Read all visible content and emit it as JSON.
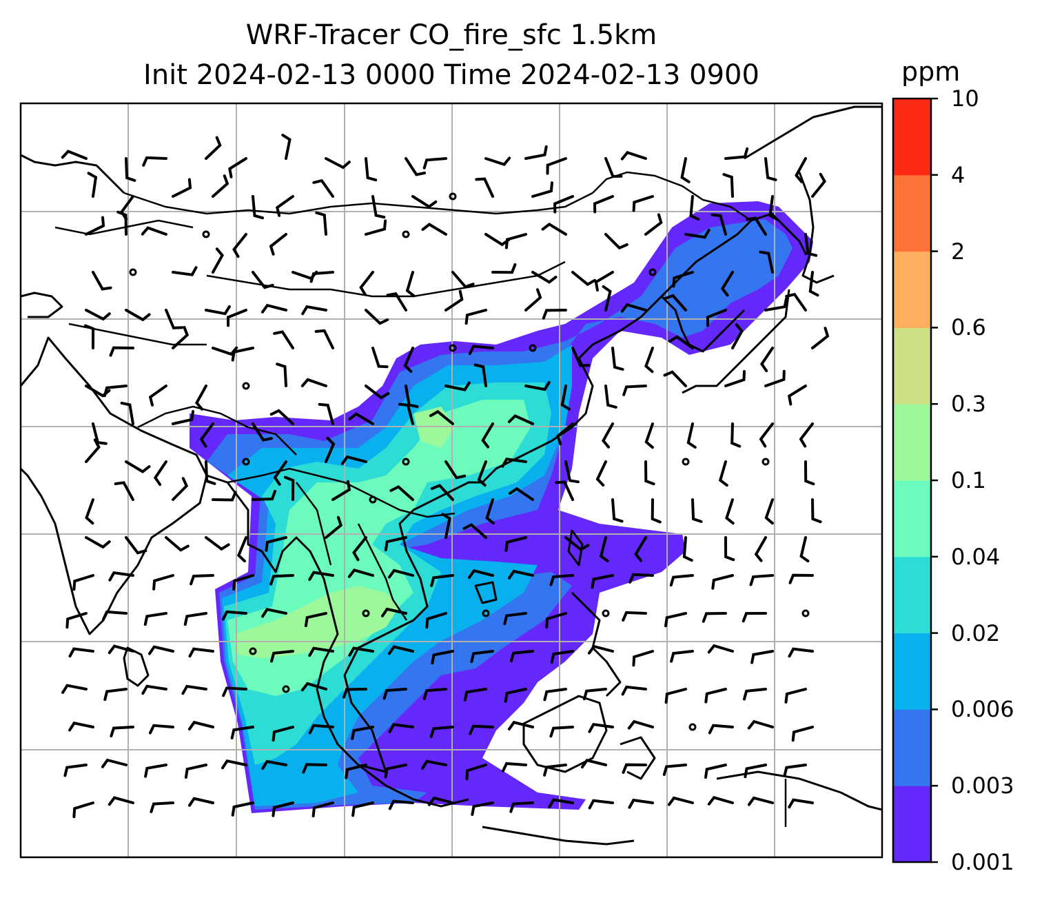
{
  "title": {
    "line1": "WRF-Tracer CO_fire_sfc 1.5km",
    "line2": "Init 2024-02-13 0000 Time 2024-02-13 0900"
  },
  "colorbar": {
    "unit": "ppm",
    "levels": [
      "0.001",
      "0.003",
      "0.006",
      "0.02",
      "0.04",
      "0.1",
      "0.3",
      "0.6",
      "2",
      "4",
      "10"
    ],
    "colors": [
      "#6428fa",
      "#3475f0",
      "#09b0ee",
      "#2edcd6",
      "#6cfbbc",
      "#9cf89a",
      "#cde083",
      "#ffae5f",
      "#ff7339",
      "#ff2a15"
    ]
  },
  "map": {
    "layers": [
      "coastlines",
      "country-borders",
      "gridlines",
      "co-tracer-field",
      "wind-barbs"
    ],
    "gridline_color": "#b0b0b0",
    "coast_color": "#000000"
  }
}
